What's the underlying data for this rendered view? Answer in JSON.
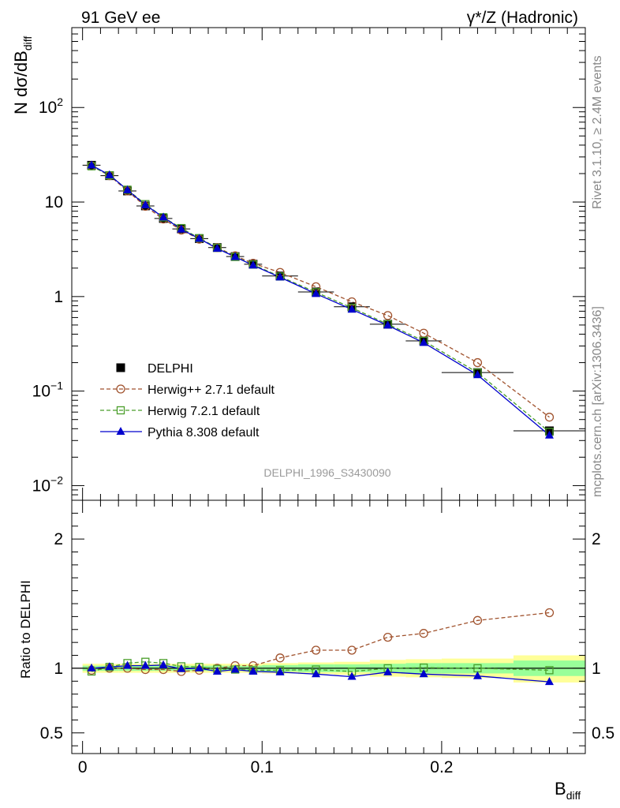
{
  "header": {
    "left_label": "91 GeV ee",
    "right_label": "γ*/Z (Hadronic)"
  },
  "side_labels": {
    "rivet": "Rivet 3.1.10, ≥ 2.4M events",
    "mcplots": "mcplots.cern.ch [arXiv:1306.3436]"
  },
  "analysis_id": "DELPHI_1996_S3430090",
  "chart_data": [
    {
      "type": "scatter",
      "panel": "main",
      "ylabel": "N dσ/dB_diff",
      "yscale": "log",
      "ylim": [
        0.007,
        700
      ],
      "xlim": [
        -0.006,
        0.28
      ],
      "y_tick_labels": [
        "10^-2",
        "10^-1",
        "1",
        "10",
        "10^2"
      ],
      "legend_placement": "lower-left",
      "x": [
        0.005,
        0.015,
        0.025,
        0.035,
        0.045,
        0.055,
        0.065,
        0.075,
        0.085,
        0.095,
        0.11,
        0.13,
        0.15,
        0.17,
        0.19,
        0.22,
        0.26
      ],
      "x_error": [
        0.005,
        0.005,
        0.005,
        0.005,
        0.005,
        0.005,
        0.005,
        0.005,
        0.005,
        0.005,
        0.01,
        0.01,
        0.01,
        0.01,
        0.01,
        0.02,
        0.02
      ],
      "series": [
        {
          "name": "DELPHI",
          "style": "data",
          "color": "#000000",
          "marker": "filled-square",
          "values": [
            24.5,
            19.0,
            13.1,
            9.1,
            6.7,
            5.2,
            4.1,
            3.3,
            2.65,
            2.2,
            1.65,
            1.12,
            0.78,
            0.51,
            0.34,
            0.157,
            0.038
          ]
        },
        {
          "name": "Herwig++ 2.7.1 default",
          "style": "dashed",
          "color": "#a0522d",
          "marker": "open-circle",
          "values": [
            24.1,
            19.0,
            13.1,
            9.0,
            6.6,
            5.05,
            4.05,
            3.3,
            2.7,
            2.25,
            1.8,
            1.27,
            0.88,
            0.63,
            0.41,
            0.2,
            0.053
          ]
        },
        {
          "name": "Herwig 7.2.1 default",
          "style": "dashed",
          "color": "#4a9e2a",
          "marker": "open-square",
          "values": [
            23.9,
            19.2,
            13.5,
            9.5,
            6.9,
            5.3,
            4.15,
            3.28,
            2.63,
            2.18,
            1.63,
            1.11,
            0.76,
            0.51,
            0.34,
            0.157,
            0.037
          ]
        },
        {
          "name": "Pythia 8.308 default",
          "style": "solid",
          "color": "#0000cd",
          "marker": "filled-triangle",
          "values": [
            24.5,
            19.3,
            13.4,
            9.3,
            6.9,
            5.15,
            4.1,
            3.22,
            2.63,
            2.14,
            1.6,
            1.07,
            0.73,
            0.495,
            0.325,
            0.148,
            0.034
          ]
        }
      ]
    },
    {
      "type": "scatter",
      "panel": "ratio",
      "ylabel": "Ratio to DELPHI",
      "xlabel": "B_diff",
      "ylim": [
        0.34,
        2.3
      ],
      "y_ticks": [
        0.5,
        1,
        2
      ],
      "y_tick_labels": [
        "0.5",
        "1",
        "2"
      ],
      "xlim": [
        -0.006,
        0.28
      ],
      "x_ticks": [
        0,
        0.1,
        0.2
      ],
      "x_tick_labels": [
        "0",
        "0.1",
        "0.2"
      ],
      "bands": {
        "x_low": [
          0.0,
          0.01,
          0.02,
          0.03,
          0.04,
          0.05,
          0.06,
          0.07,
          0.08,
          0.09,
          0.1,
          0.12,
          0.14,
          0.16,
          0.18,
          0.2,
          0.24
        ],
        "x_high": [
          0.01,
          0.02,
          0.03,
          0.04,
          0.05,
          0.06,
          0.07,
          0.08,
          0.09,
          0.1,
          0.12,
          0.14,
          0.16,
          0.18,
          0.2,
          0.24,
          0.28
        ],
        "stat_lo": [
          0.98,
          0.98,
          0.98,
          0.98,
          0.98,
          0.98,
          0.98,
          0.98,
          0.98,
          0.98,
          0.975,
          0.97,
          0.97,
          0.965,
          0.96,
          0.96,
          0.94
        ],
        "stat_hi": [
          1.02,
          1.02,
          1.02,
          1.02,
          1.02,
          1.02,
          1.02,
          1.02,
          1.02,
          1.02,
          1.025,
          1.03,
          1.03,
          1.035,
          1.04,
          1.04,
          1.06
        ],
        "syst_lo": [
          0.965,
          0.965,
          0.965,
          0.965,
          0.965,
          0.965,
          0.965,
          0.965,
          0.965,
          0.965,
          0.96,
          0.955,
          0.95,
          0.935,
          0.93,
          0.925,
          0.89
        ],
        "syst_hi": [
          1.035,
          1.035,
          1.035,
          1.035,
          1.035,
          1.035,
          1.035,
          1.035,
          1.035,
          1.035,
          1.04,
          1.045,
          1.05,
          1.065,
          1.07,
          1.075,
          1.1
        ]
      },
      "series": [
        {
          "name": "Herwig++ 2.7.1 default",
          "color": "#a0522d",
          "values": [
            0.985,
            1.0,
            1.0,
            0.99,
            0.99,
            0.975,
            0.985,
            1.0,
            1.02,
            1.02,
            1.08,
            1.14,
            1.14,
            1.24,
            1.27,
            1.37,
            1.43
          ]
        },
        {
          "name": "Herwig 7.2.1 default",
          "color": "#4a9e2a",
          "values": [
            0.975,
            1.01,
            1.04,
            1.05,
            1.04,
            1.015,
            1.01,
            0.995,
            0.99,
            0.985,
            0.985,
            0.99,
            0.975,
            1.0,
            1.005,
            1.0,
            0.985
          ]
        },
        {
          "name": "Pythia 8.308 default",
          "color": "#0000cd",
          "values": [
            1.0,
            1.01,
            1.02,
            1.02,
            1.025,
            0.995,
            1.0,
            0.975,
            0.99,
            0.975,
            0.97,
            0.955,
            0.935,
            0.97,
            0.955,
            0.94,
            0.895
          ]
        }
      ]
    }
  ]
}
